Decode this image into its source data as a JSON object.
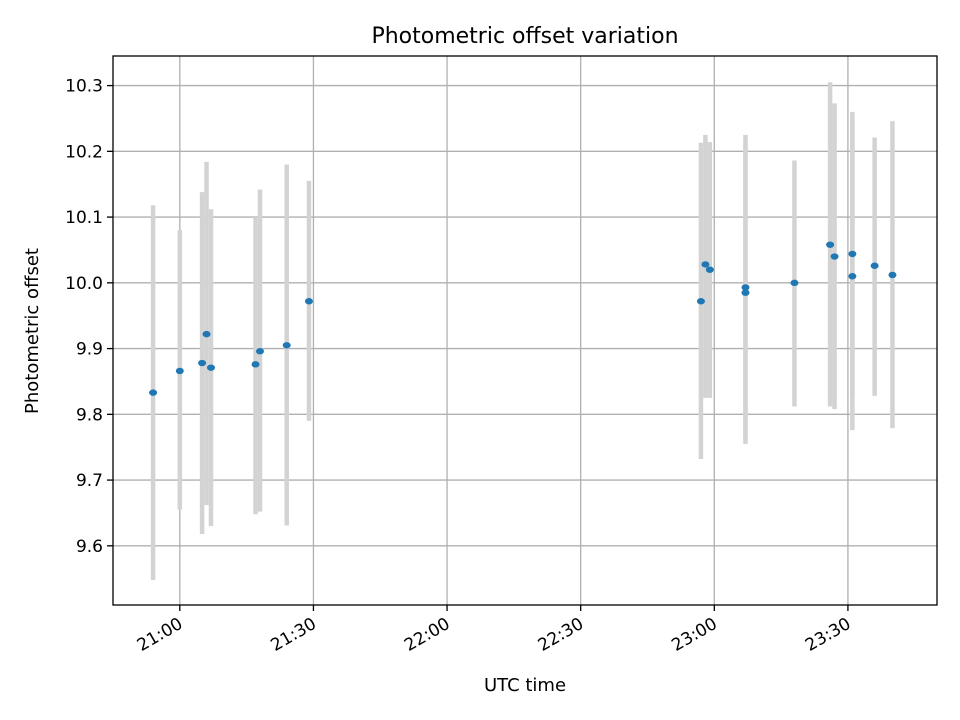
{
  "chart_data": {
    "type": "scatter",
    "title": "Photometric offset variation",
    "xlabel": "UTC time",
    "ylabel": "Photometric offset",
    "xlim": [
      "20:45",
      "23:50"
    ],
    "ylim": [
      9.51,
      10.345
    ],
    "x_ticks": [
      "21:00",
      "21:30",
      "22:00",
      "22:30",
      "23:00",
      "23:30"
    ],
    "y_ticks": [
      9.6,
      9.7,
      9.8,
      9.9,
      10.0,
      10.1,
      10.2,
      10.3
    ],
    "y_tick_labels": [
      "9.6",
      "9.7",
      "9.8",
      "9.9",
      "10.0",
      "10.1",
      "10.2",
      "10.3"
    ],
    "grid": true,
    "colors": {
      "point": "#1f77b4",
      "errorbar": "#d3d3d3",
      "grid": "#b0b0b0"
    },
    "points": [
      {
        "x": "20:54",
        "y": 9.833,
        "yerr_low": 9.548,
        "yerr_high": 10.118
      },
      {
        "x": "20:60",
        "y": 9.866,
        "yerr_low": 9.655,
        "yerr_high": 10.08
      },
      {
        "x": "21:05",
        "y": 9.878,
        "yerr_low": 9.618,
        "yerr_high": 10.138
      },
      {
        "x": "21:06",
        "y": 9.922,
        "yerr_low": 9.662,
        "yerr_high": 10.184
      },
      {
        "x": "21:07",
        "y": 9.871,
        "yerr_low": 9.63,
        "yerr_high": 10.112
      },
      {
        "x": "21:17",
        "y": 9.876,
        "yerr_low": 9.648,
        "yerr_high": 10.1
      },
      {
        "x": "21:18",
        "y": 9.896,
        "yerr_low": 9.652,
        "yerr_high": 10.142
      },
      {
        "x": "21:24",
        "y": 9.905,
        "yerr_low": 9.631,
        "yerr_high": 10.18
      },
      {
        "x": "21:29",
        "y": 9.972,
        "yerr_low": 9.79,
        "yerr_high": 10.155
      },
      {
        "x": "22:57",
        "y": 9.972,
        "yerr_low": 9.732,
        "yerr_high": 10.213
      },
      {
        "x": "22:58",
        "y": 10.028,
        "yerr_low": 9.825,
        "yerr_high": 10.225
      },
      {
        "x": "22:59",
        "y": 10.02,
        "yerr_low": 9.825,
        "yerr_high": 10.214
      },
      {
        "x": "23:07",
        "y": 9.985,
        "yerr_low": 9.755,
        "yerr_high": 10.216
      },
      {
        "x": "23:07",
        "y": 9.993,
        "yerr_low": 9.762,
        "yerr_high": 10.225
      },
      {
        "x": "23:18",
        "y": 10.0,
        "yerr_low": 9.812,
        "yerr_high": 10.186
      },
      {
        "x": "23:26",
        "y": 10.058,
        "yerr_low": 9.812,
        "yerr_high": 10.305
      },
      {
        "x": "23:27",
        "y": 10.04,
        "yerr_low": 9.808,
        "yerr_high": 10.273
      },
      {
        "x": "23:31",
        "y": 10.044,
        "yerr_low": 9.829,
        "yerr_high": 10.26
      },
      {
        "x": "23:31",
        "y": 10.01,
        "yerr_low": 9.776,
        "yerr_high": 10.246
      },
      {
        "x": "23:36",
        "y": 10.026,
        "yerr_low": 9.828,
        "yerr_high": 10.221
      },
      {
        "x": "23:40",
        "y": 10.012,
        "yerr_low": 9.779,
        "yerr_high": 10.246
      }
    ]
  }
}
